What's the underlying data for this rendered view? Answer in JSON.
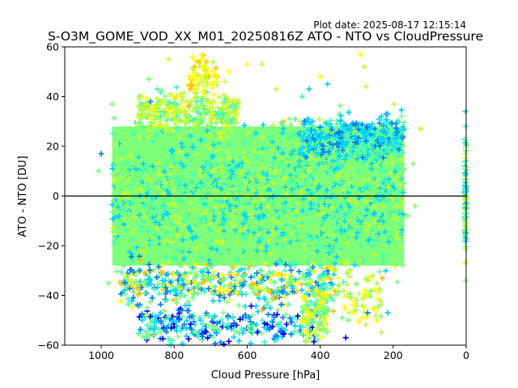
{
  "chart_data": {
    "type": "scatter",
    "title": "S-O3M_GOME_VOD_XX_M01_20250816Z ATO - NTO vs CloudPressure",
    "plot_date": "Plot date: 2025-08-17 12:15:14",
    "xlabel": "Cloud Pressure [hPa]",
    "ylabel": "ATO - NTO [DU]",
    "xlim": [
      1100,
      0
    ],
    "ylim": [
      -60,
      60
    ],
    "x_ticks": [
      1000,
      800,
      600,
      400,
      200,
      0
    ],
    "y_ticks": [
      -60,
      -40,
      -20,
      0,
      20,
      40,
      60
    ],
    "reference_line_y": 0,
    "marker": "+",
    "grid": false,
    "color_scale": [
      "#0000ff",
      "#0080ff",
      "#00d4ff",
      "#3dffb8",
      "#7dff7a",
      "#c0ff36",
      "#ffff00",
      "#ffc000"
    ],
    "dense_band": {
      "x_range": [
        970,
        170
      ],
      "y_range": [
        -28,
        28
      ],
      "dominant_color": "#7dff7a"
    },
    "clusters": [
      {
        "x_range": [
          970,
          170
        ],
        "y_range": [
          -28,
          28
        ],
        "n": 2600,
        "colors": [
          3,
          4,
          4,
          4,
          2,
          5
        ]
      },
      {
        "x_range": [
          900,
          620
        ],
        "y_range": [
          25,
          42
        ],
        "n": 350,
        "colors": [
          4,
          5,
          5,
          6,
          3
        ]
      },
      {
        "x_range": [
          760,
          680
        ],
        "y_range": [
          40,
          57
        ],
        "n": 70,
        "colors": [
          5,
          6,
          6,
          7
        ]
      },
      {
        "x_range": [
          460,
          170
        ],
        "y_range": [
          15,
          33
        ],
        "n": 300,
        "colors": [
          2,
          1,
          2,
          3
        ]
      },
      {
        "x_range": [
          950,
          350
        ],
        "y_range": [
          -45,
          -27
        ],
        "n": 500,
        "colors": [
          2,
          3,
          4,
          6,
          7,
          1
        ]
      },
      {
        "x_range": [
          900,
          400
        ],
        "y_range": [
          -60,
          -45
        ],
        "n": 280,
        "colors": [
          2,
          1,
          0,
          3,
          4
        ]
      },
      {
        "x_range": [
          450,
          380
        ],
        "y_range": [
          -60,
          -35
        ],
        "n": 120,
        "colors": [
          5,
          4,
          3,
          6
        ]
      },
      {
        "x_range": [
          350,
          230
        ],
        "y_range": [
          -52,
          -30
        ],
        "n": 60,
        "colors": [
          6,
          5,
          4
        ]
      },
      {
        "x_range": [
          4,
          0
        ],
        "y_range": [
          -22,
          22
        ],
        "n": 90,
        "colors": [
          3,
          4,
          5,
          2
        ]
      }
    ],
    "sparse_points": [
      {
        "x": 815,
        "y": 55,
        "c": 5
      },
      {
        "x": 870,
        "y": 47,
        "c": 4
      },
      {
        "x": 600,
        "y": 53,
        "c": 6
      },
      {
        "x": 560,
        "y": 53,
        "c": 5
      },
      {
        "x": 290,
        "y": 57,
        "c": 6
      },
      {
        "x": 280,
        "y": 52,
        "c": 5
      },
      {
        "x": 650,
        "y": 50,
        "c": 6
      },
      {
        "x": 660,
        "y": 46,
        "c": 5
      },
      {
        "x": 520,
        "y": 43,
        "c": 5
      },
      {
        "x": 400,
        "y": 48,
        "c": 6
      },
      {
        "x": 380,
        "y": 45,
        "c": 2
      },
      {
        "x": 275,
        "y": 44,
        "c": 5
      },
      {
        "x": 430,
        "y": 43,
        "c": 2
      },
      {
        "x": 450,
        "y": 40,
        "c": 3
      },
      {
        "x": 970,
        "y": 37,
        "c": 4
      },
      {
        "x": 865,
        "y": 38,
        "c": 1
      },
      {
        "x": 198,
        "y": 37,
        "c": 5
      },
      {
        "x": 125,
        "y": 27,
        "c": 5
      },
      {
        "x": 145,
        "y": 13,
        "c": 4
      },
      {
        "x": 140,
        "y": -4,
        "c": 4
      },
      {
        "x": 160,
        "y": -8,
        "c": 4
      },
      {
        "x": 215,
        "y": -47,
        "c": 2
      },
      {
        "x": 270,
        "y": -47,
        "c": 1
      },
      {
        "x": 980,
        "y": -35,
        "c": 4
      },
      {
        "x": 900,
        "y": -37,
        "c": 7
      },
      {
        "x": 875,
        "y": -48,
        "c": 5
      },
      {
        "x": 330,
        "y": -57,
        "c": 0
      },
      {
        "x": 340,
        "y": -49,
        "c": 4
      },
      {
        "x": 1000,
        "y": 17,
        "c": 1
      },
      {
        "x": 1008,
        "y": 10,
        "c": 4
      },
      {
        "x": 2,
        "y": 34,
        "c": 2
      },
      {
        "x": 2,
        "y": 28,
        "c": 3
      },
      {
        "x": 2,
        "y": -34,
        "c": 4
      },
      {
        "x": 500,
        "y": 30,
        "c": 7
      },
      {
        "x": 760,
        "y": 36,
        "c": 7
      },
      {
        "x": 230,
        "y": -33,
        "c": 7
      }
    ]
  }
}
